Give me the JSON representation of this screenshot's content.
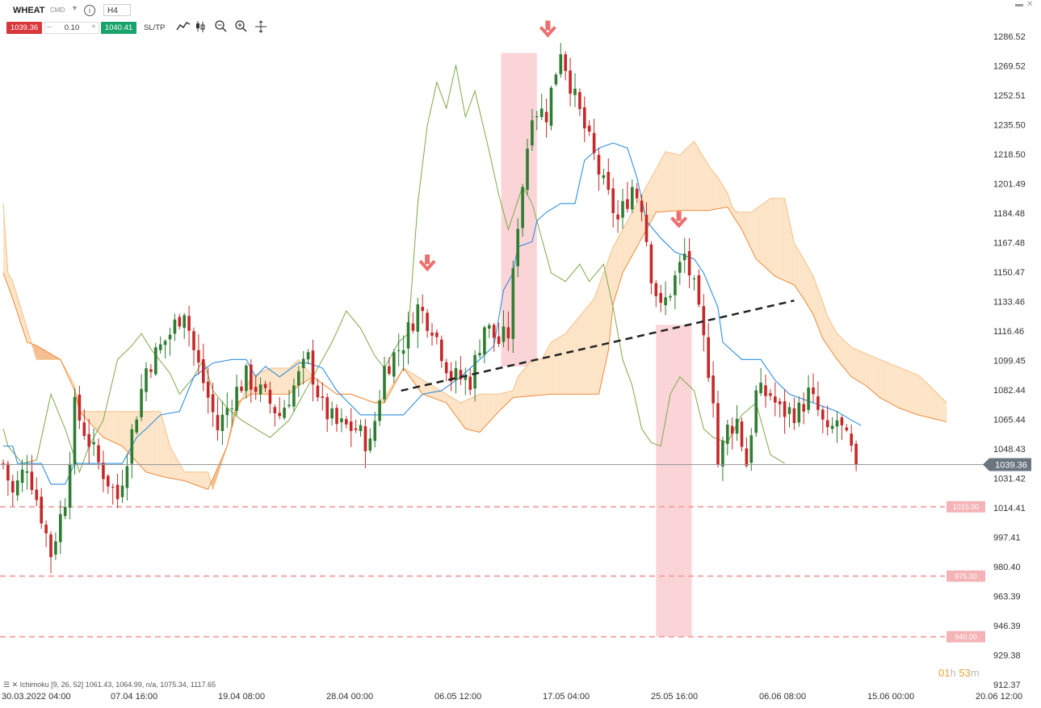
{
  "toolbar": {
    "symbol": "WHEAT",
    "symbol_tag": "CMD",
    "info_icon": "i",
    "timeframe": "H4",
    "sell_price": "1039.36",
    "quantity": "0.10",
    "buy_price": "1040.41",
    "sltp_label": "SL/TP",
    "icons": [
      "line-chart-icon",
      "candles-icon",
      "zoom-out-icon",
      "zoom-in-icon",
      "crosshair-icon"
    ]
  },
  "colors": {
    "up": "#2e7d32",
    "down": "#c62828",
    "kijun": "#2f8fe0",
    "chikou": "#7ea84a",
    "cloud_bear": "#f4b98a",
    "cloud_bull": "#fde3c4",
    "cloud_edge": "#ee8a3a",
    "signal": "#ee6e6e",
    "zone": "#f9c5c9",
    "level": "#f2a7a9",
    "trendline": "#222222"
  },
  "indicator_label": "Ichimoku [9, 26, 52]  1061.43, 1064.99, n/a, 1075.34, 1117.65",
  "timer": {
    "h": "01",
    "h_unit": "h",
    "m": "53",
    "m_unit": "m"
  },
  "chart_data": {
    "type": "candlestick",
    "instrument": "WHEAT",
    "timeframe": "H4",
    "last_price": 1039.36,
    "last_price_label": "1039.36",
    "y_ticks": [
      "1286.52",
      "1269.52",
      "1252.51",
      "1235.50",
      "1218.50",
      "1201.49",
      "1184.48",
      "1167.48",
      "1150.47",
      "1133.46",
      "1116.46",
      "1099.45",
      "1082.44",
      "1065.44",
      "1048.43",
      "1031.42",
      "1014.41",
      "997.41",
      "980.40",
      "963.39",
      "946.39",
      "929.38",
      "912.37"
    ],
    "x_ticks": [
      "30.03.2022 04:00",
      "07.04 16:00",
      "19.04 08:00",
      "28.04 00:00",
      "06.05 12:00",
      "17.05 04:00",
      "25.05 16:00",
      "06.06 08:00",
      "15.06 00:00",
      "20.06 12:00"
    ],
    "x_range": [
      "30.03.2022",
      "20.06"
    ],
    "y_range": [
      912.37,
      1295
    ],
    "horizontal_levels": [
      {
        "value": 1015.0,
        "label": "1015.00"
      },
      {
        "value": 975.0,
        "label": "975.00"
      },
      {
        "value": 940.0,
        "label": "940.00"
      }
    ],
    "candle_path": [
      [
        0,
        1040
      ],
      [
        2,
        1022
      ],
      [
        5,
        1040
      ],
      [
        8,
        1010
      ],
      [
        10,
        988
      ],
      [
        13,
        1020
      ],
      [
        15,
        1072
      ],
      [
        20,
        1040
      ],
      [
        24,
        1020
      ],
      [
        30,
        1095
      ],
      [
        35,
        1115
      ],
      [
        38,
        1130
      ],
      [
        40,
        1105
      ],
      [
        43,
        1078
      ],
      [
        45,
        1060
      ],
      [
        48,
        1078
      ],
      [
        51,
        1090
      ],
      [
        55,
        1078
      ],
      [
        58,
        1068
      ],
      [
        62,
        1090
      ],
      [
        64,
        1100
      ],
      [
        67,
        1072
      ],
      [
        70,
        1062
      ],
      [
        74,
        1060
      ],
      [
        77,
        1050
      ],
      [
        80,
        1095
      ],
      [
        84,
        1110
      ],
      [
        87,
        1130
      ],
      [
        90,
        1120
      ],
      [
        94,
        1090
      ],
      [
        98,
        1088
      ],
      [
        101,
        1120
      ],
      [
        104,
        1110
      ],
      [
        106,
        1115
      ],
      [
        108,
        1180
      ],
      [
        111,
        1245
      ],
      [
        114,
        1242
      ],
      [
        117,
        1280
      ],
      [
        120,
        1250
      ],
      [
        123,
        1225
      ],
      [
        126,
        1200
      ],
      [
        129,
        1180
      ],
      [
        132,
        1200
      ],
      [
        134,
        1190
      ],
      [
        136,
        1150
      ],
      [
        138,
        1128
      ],
      [
        140,
        1140
      ],
      [
        143,
        1160
      ],
      [
        145,
        1140
      ],
      [
        147,
        1110
      ],
      [
        149,
        1080
      ],
      [
        150,
        1040
      ],
      [
        152,
        1060
      ],
      [
        154,
        1065
      ],
      [
        156,
        1040
      ],
      [
        158,
        1080
      ],
      [
        161,
        1080
      ],
      [
        163,
        1070
      ],
      [
        167,
        1070
      ],
      [
        169,
        1080
      ],
      [
        171,
        1070
      ],
      [
        173,
        1055
      ],
      [
        175,
        1065
      ],
      [
        179,
        1040
      ]
    ],
    "red_zones": [
      {
        "from_index": 104.5,
        "to_index": 112,
        "top": 1277,
        "bottom": 1096
      },
      {
        "from_index": 137,
        "to_index": 144.5,
        "top": 1120,
        "bottom": 940
      }
    ],
    "sell_signals": [
      {
        "index": 89,
        "value": 1155,
        "label": "arrow-down"
      },
      {
        "index": 114.3,
        "value": 1290,
        "label": "arrow-down"
      },
      {
        "index": 141.8,
        "value": 1180,
        "label": "arrow-down"
      }
    ],
    "trendline": {
      "from": [
        83.5,
        1082
      ],
      "to": [
        166,
        1134
      ]
    },
    "cloud_span_a": [
      [
        0,
        1190
      ],
      [
        1,
        1150
      ],
      [
        2,
        1145
      ],
      [
        7,
        1100
      ],
      [
        12,
        1100
      ],
      [
        15,
        1085
      ],
      [
        16,
        1070
      ],
      [
        26,
        1070
      ],
      [
        33,
        1070
      ],
      [
        35,
        1050
      ],
      [
        38,
        1035
      ],
      [
        43,
        1035
      ],
      [
        44,
        1025
      ],
      [
        47,
        1050
      ],
      [
        49,
        1070
      ],
      [
        52,
        1090
      ],
      [
        56,
        1095
      ],
      [
        60,
        1095
      ],
      [
        62,
        1100
      ],
      [
        65,
        1090
      ],
      [
        70,
        1080
      ],
      [
        73,
        1080
      ],
      [
        78,
        1075
      ],
      [
        80,
        1078
      ],
      [
        84,
        1095
      ],
      [
        90,
        1085
      ],
      [
        96,
        1075
      ],
      [
        100,
        1080
      ],
      [
        104,
        1080
      ],
      [
        107,
        1082
      ],
      [
        108,
        1090
      ],
      [
        111,
        1100
      ],
      [
        113,
        1100
      ],
      [
        115,
        1110
      ],
      [
        118,
        1115
      ],
      [
        121,
        1125
      ],
      [
        124,
        1135
      ],
      [
        126,
        1150
      ],
      [
        128,
        1165
      ],
      [
        131,
        1180
      ],
      [
        133,
        1190
      ],
      [
        135,
        1200
      ],
      [
        139,
        1220
      ],
      [
        142,
        1218
      ],
      [
        145,
        1226
      ],
      [
        148,
        1212
      ],
      [
        150,
        1205
      ],
      [
        152,
        1196
      ],
      [
        153,
        1188
      ],
      [
        154,
        1185
      ],
      [
        157,
        1185
      ],
      [
        161,
        1193
      ],
      [
        164,
        1193
      ],
      [
        166,
        1167
      ],
      [
        168,
        1158
      ],
      [
        170,
        1148
      ],
      [
        172,
        1133
      ],
      [
        173,
        1125
      ],
      [
        175,
        1115
      ],
      [
        178,
        1107
      ],
      [
        184,
        1100
      ],
      [
        192,
        1091
      ],
      [
        194,
        1086
      ],
      [
        198,
        1075
      ]
    ],
    "cloud_span_b": [
      [
        0,
        1150
      ],
      [
        2,
        1135
      ],
      [
        5,
        1110
      ],
      [
        7,
        1108
      ],
      [
        12,
        1100
      ],
      [
        15,
        1082
      ],
      [
        16,
        1070
      ],
      [
        21,
        1055
      ],
      [
        25,
        1050
      ],
      [
        30,
        1035
      ],
      [
        34,
        1032
      ],
      [
        38,
        1030
      ],
      [
        43,
        1025
      ],
      [
        47,
        1050
      ],
      [
        49,
        1075
      ],
      [
        52,
        1080
      ],
      [
        56,
        1080
      ],
      [
        60,
        1080
      ],
      [
        62,
        1085
      ],
      [
        65,
        1090
      ],
      [
        70,
        1080
      ],
      [
        73,
        1080
      ],
      [
        78,
        1075
      ],
      [
        80,
        1075
      ],
      [
        84,
        1095
      ],
      [
        88,
        1080
      ],
      [
        93,
        1075
      ],
      [
        97,
        1060
      ],
      [
        100,
        1058
      ],
      [
        104,
        1070
      ],
      [
        107,
        1078
      ],
      [
        111,
        1079
      ],
      [
        115,
        1080
      ],
      [
        120,
        1080
      ],
      [
        125,
        1080
      ],
      [
        127,
        1105
      ],
      [
        128,
        1132
      ],
      [
        130,
        1150
      ],
      [
        133,
        1165
      ],
      [
        137,
        1185
      ],
      [
        142,
        1186
      ],
      [
        148,
        1186
      ],
      [
        152,
        1188
      ],
      [
        155,
        1175
      ],
      [
        158,
        1158
      ],
      [
        162,
        1148
      ],
      [
        166,
        1143
      ],
      [
        168,
        1135
      ],
      [
        170,
        1126
      ],
      [
        172,
        1112
      ],
      [
        175,
        1100
      ],
      [
        178,
        1090
      ],
      [
        181,
        1085
      ],
      [
        184,
        1078
      ],
      [
        188,
        1072
      ],
      [
        192,
        1068
      ],
      [
        195,
        1066
      ],
      [
        198,
        1064
      ]
    ],
    "kijun_line": [
      [
        0,
        1050
      ],
      [
        2,
        1050
      ],
      [
        3,
        1040
      ],
      [
        8,
        1040
      ],
      [
        10,
        1028
      ],
      [
        13,
        1028
      ],
      [
        15,
        1040
      ],
      [
        20,
        1040
      ],
      [
        25,
        1040
      ],
      [
        28,
        1055
      ],
      [
        30,
        1060
      ],
      [
        33,
        1068
      ],
      [
        37,
        1070
      ],
      [
        40,
        1090
      ],
      [
        44,
        1098
      ],
      [
        48,
        1100
      ],
      [
        51,
        1100
      ],
      [
        53,
        1090
      ],
      [
        55,
        1096
      ],
      [
        58,
        1090
      ],
      [
        62,
        1098
      ],
      [
        64,
        1098
      ],
      [
        67,
        1095
      ],
      [
        70,
        1082
      ],
      [
        75,
        1068
      ],
      [
        80,
        1068
      ],
      [
        84,
        1068
      ],
      [
        88,
        1080
      ],
      [
        92,
        1082
      ],
      [
        96,
        1090
      ],
      [
        100,
        1100
      ],
      [
        103,
        1108
      ],
      [
        105,
        1140
      ],
      [
        107,
        1150
      ],
      [
        108,
        1165
      ],
      [
        111,
        1168
      ],
      [
        112,
        1180
      ],
      [
        114,
        1185
      ],
      [
        117,
        1190
      ],
      [
        120,
        1190
      ],
      [
        122,
        1215
      ],
      [
        125,
        1222
      ],
      [
        128,
        1225
      ],
      [
        131,
        1222
      ],
      [
        133,
        1205
      ],
      [
        135,
        1180
      ],
      [
        138,
        1170
      ],
      [
        141,
        1162
      ],
      [
        143,
        1160
      ],
      [
        145,
        1158
      ],
      [
        147,
        1150
      ],
      [
        150,
        1130
      ],
      [
        151,
        1110
      ],
      [
        155,
        1100
      ],
      [
        159,
        1100
      ],
      [
        162,
        1088
      ],
      [
        165,
        1080
      ],
      [
        170,
        1075
      ],
      [
        173,
        1072
      ],
      [
        175,
        1070
      ],
      [
        178,
        1065
      ],
      [
        180,
        1062
      ]
    ],
    "chikou_line": [
      [
        0,
        1060
      ],
      [
        1,
        1050
      ],
      [
        4,
        1040
      ],
      [
        7,
        1042
      ],
      [
        10,
        1080
      ],
      [
        13,
        1060
      ],
      [
        16,
        1035
      ],
      [
        18,
        1050
      ],
      [
        21,
        1065
      ],
      [
        24,
        1100
      ],
      [
        27,
        1108
      ],
      [
        29,
        1115
      ],
      [
        31,
        1106
      ],
      [
        35,
        1092
      ],
      [
        37,
        1080
      ],
      [
        40,
        1090
      ],
      [
        42,
        1100
      ],
      [
        44,
        1082
      ],
      [
        47,
        1072
      ],
      [
        50,
        1065
      ],
      [
        53,
        1060
      ],
      [
        56,
        1055
      ],
      [
        60,
        1065
      ],
      [
        63,
        1080
      ],
      [
        66,
        1095
      ],
      [
        69,
        1110
      ],
      [
        72,
        1128
      ],
      [
        75,
        1118
      ],
      [
        78,
        1102
      ],
      [
        80,
        1095
      ],
      [
        83,
        1110
      ],
      [
        85,
        1115
      ],
      [
        87,
        1190
      ],
      [
        89,
        1235
      ],
      [
        91,
        1260
      ],
      [
        93,
        1245
      ],
      [
        95,
        1270
      ],
      [
        97,
        1240
      ],
      [
        99,
        1255
      ],
      [
        102,
        1220
      ],
      [
        104,
        1195
      ],
      [
        106,
        1175
      ],
      [
        109,
        1200
      ],
      [
        111,
        1190
      ],
      [
        113,
        1170
      ],
      [
        115,
        1150
      ],
      [
        118,
        1145
      ],
      [
        121,
        1155
      ],
      [
        123,
        1145
      ],
      [
        126,
        1155
      ],
      [
        128,
        1130
      ],
      [
        130,
        1100
      ],
      [
        132,
        1085
      ],
      [
        134,
        1060
      ],
      [
        136,
        1052
      ],
      [
        138,
        1050
      ],
      [
        140,
        1080
      ],
      [
        142,
        1090
      ],
      [
        145,
        1082
      ],
      [
        147,
        1060
      ],
      [
        149,
        1055
      ],
      [
        152,
        1052
      ],
      [
        155,
        1068
      ],
      [
        158,
        1075
      ],
      [
        161,
        1045
      ],
      [
        164,
        1040
      ]
    ]
  }
}
